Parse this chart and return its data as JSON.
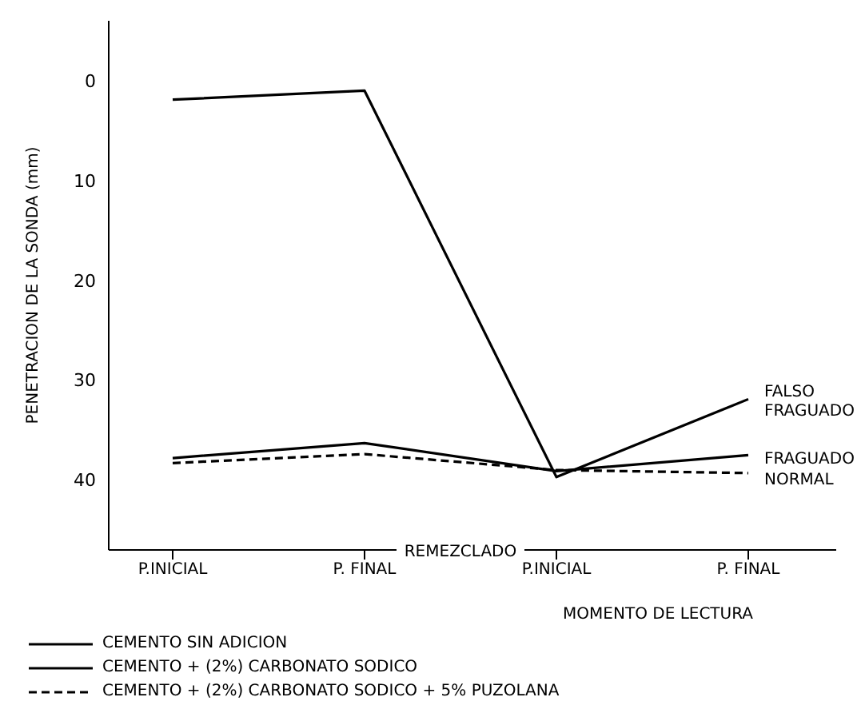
{
  "chart_data": {
    "type": "line",
    "xlabel": "MOMENTO DE LECTURA",
    "ylabel": "PENETRACION DE LA SONDA (mm)",
    "categories": [
      "P.INICIAL",
      "P. FINAL",
      "P.INICIAL",
      "P. FINAL"
    ],
    "ylim": [
      47,
      -6
    ],
    "yticks": [
      0,
      10,
      20,
      30,
      40
    ],
    "grid": false,
    "legend": "bottom",
    "marker": "none",
    "series": [
      {
        "name": "CEMENTO SIN ADICION",
        "color": "#000000",
        "values": [
          37.8,
          36.3,
          39.1,
          37.5
        ],
        "line_style": "solid"
      },
      {
        "name": "CEMENTO + (2%) CARBONATO SODICO",
        "color": "#000000",
        "values": [
          1.9,
          1.0,
          39.7,
          31.9
        ],
        "line_style": "solid"
      },
      {
        "name": "CEMENTO + (2%) CARBONATO SODICO + 5% PUZOLANA",
        "color": "#000000",
        "values": [
          38.3,
          37.4,
          39.0,
          39.3
        ],
        "line_style": "dashed"
      }
    ],
    "annotations": [
      "REMEZCLADO",
      "FALSO FRAGUADO",
      "FRAGUADO",
      "NORMAL"
    ]
  }
}
